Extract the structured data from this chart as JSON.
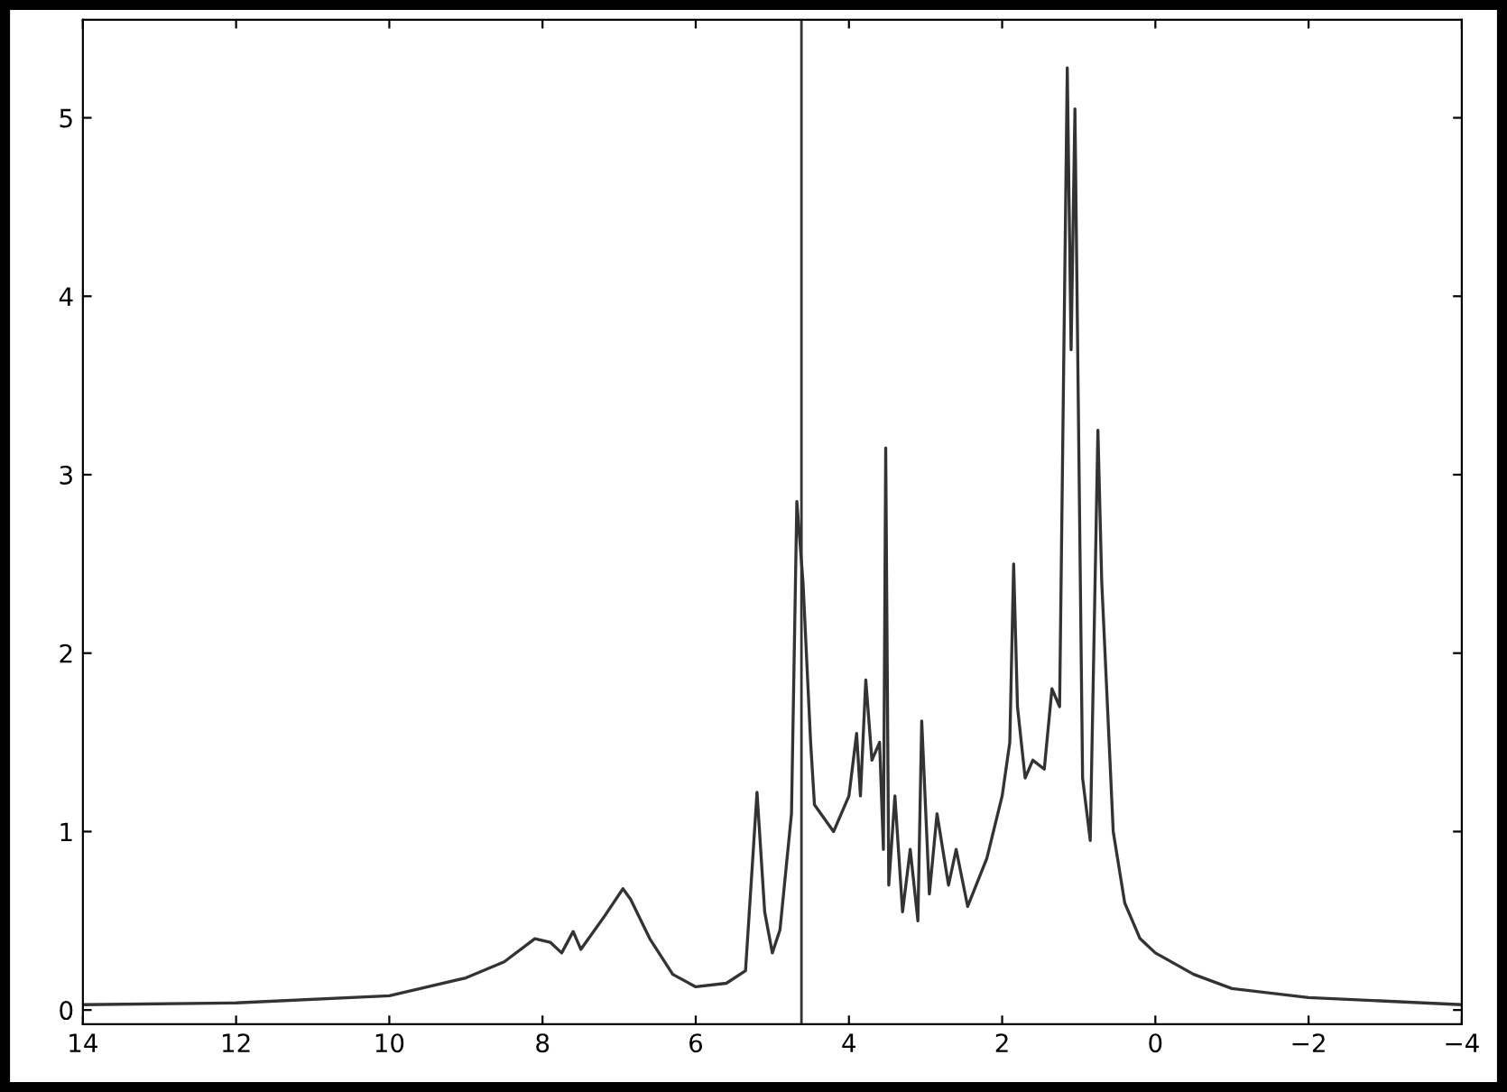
{
  "chart_data": {
    "type": "line",
    "x": [
      14,
      12,
      10,
      9,
      8.5,
      8.1,
      7.9,
      7.75,
      7.6,
      7.5,
      7.2,
      6.95,
      6.85,
      6.6,
      6.3,
      6.0,
      5.6,
      5.35,
      5.2,
      5.1,
      5.0,
      4.9,
      4.75,
      4.68,
      4.6,
      4.5,
      4.45,
      4.2,
      4.0,
      3.9,
      3.85,
      3.78,
      3.7,
      3.6,
      3.55,
      3.52,
      3.48,
      3.4,
      3.3,
      3.2,
      3.1,
      3.05,
      2.95,
      2.85,
      2.7,
      2.6,
      2.45,
      2.2,
      2.0,
      1.9,
      1.85,
      1.8,
      1.7,
      1.6,
      1.45,
      1.35,
      1.25,
      1.15,
      1.1,
      1.05,
      0.95,
      0.85,
      0.75,
      0.7,
      0.55,
      0.4,
      0.2,
      0,
      -0.5,
      -1,
      -2,
      -4
    ],
    "series": [
      {
        "color": "#333333",
        "values": [
          0.03,
          0.04,
          0.08,
          0.18,
          0.27,
          0.4,
          0.38,
          0.32,
          0.44,
          0.34,
          0.52,
          0.68,
          0.62,
          0.4,
          0.2,
          0.13,
          0.15,
          0.22,
          1.22,
          0.55,
          0.32,
          0.45,
          1.1,
          2.85,
          2.4,
          1.5,
          1.15,
          1.0,
          1.2,
          1.55,
          1.2,
          1.85,
          1.4,
          1.5,
          0.9,
          3.15,
          0.7,
          1.2,
          0.55,
          0.9,
          0.5,
          1.62,
          0.65,
          1.1,
          0.7,
          0.9,
          0.58,
          0.85,
          1.2,
          1.5,
          2.5,
          1.7,
          1.3,
          1.4,
          1.35,
          1.8,
          1.7,
          5.28,
          3.7,
          5.05,
          1.3,
          0.95,
          3.25,
          2.4,
          1.0,
          0.6,
          0.4,
          0.32,
          0.2,
          0.12,
          0.07,
          0.03
        ]
      }
    ],
    "xlim": [
      14,
      -4
    ],
    "xticks": [
      14,
      12,
      10,
      8,
      6,
      4,
      2,
      0,
      {
        "value": -2,
        "label": "−2"
      },
      {
        "value": -4,
        "label": "−4"
      }
    ],
    "ylim": [
      -0.08,
      5.55
    ],
    "yticks": [
      0,
      1,
      2,
      3,
      4,
      5
    ],
    "ref_lines": [
      {
        "axis": "x",
        "value": 4.62,
        "color": "#333333"
      }
    ],
    "grid": false,
    "legend": false
  }
}
